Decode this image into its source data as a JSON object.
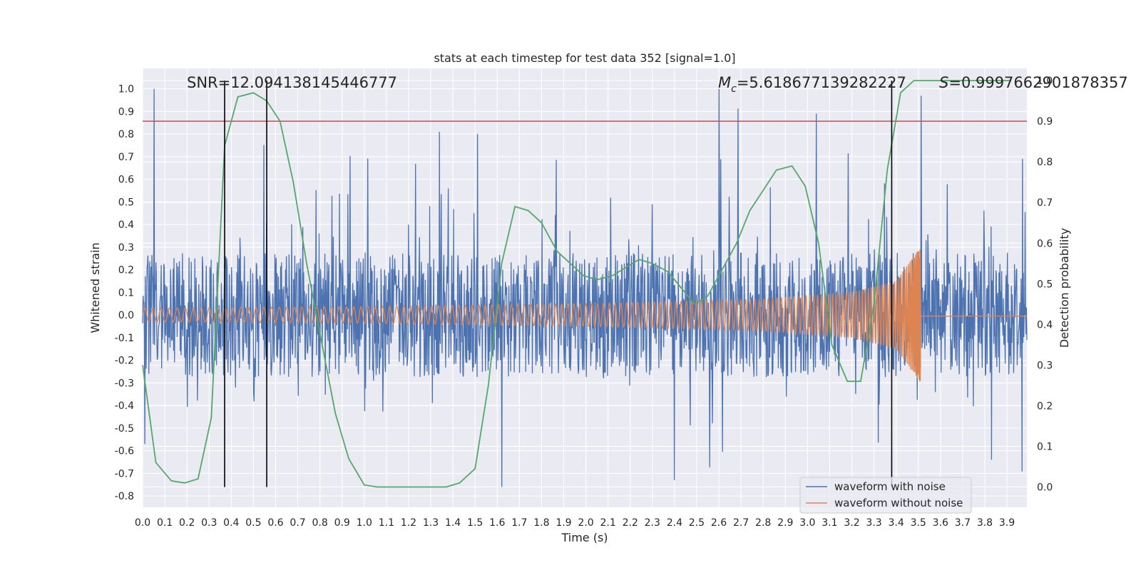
{
  "chart_data": {
    "type": "line",
    "title": "stats at each timestep for test data 352 [signal=1.0]",
    "xlabel": "Time (s)",
    "ylabel": "Whitened strain",
    "y2label": "Detection probability",
    "xlim": [
      0.0,
      3.99
    ],
    "ylim": [
      -0.85,
      1.09
    ],
    "y2lim": [
      -0.05,
      1.03
    ],
    "x_ticks": [
      0.0,
      0.1,
      0.2,
      0.3,
      0.4,
      0.5,
      0.6,
      0.7,
      0.8,
      0.9,
      1.0,
      1.1,
      1.2,
      1.3,
      1.4,
      1.5,
      1.6,
      1.7,
      1.8,
      1.9,
      2.0,
      2.1,
      2.2,
      2.3,
      2.4,
      2.5,
      2.6,
      2.7,
      2.8,
      2.9,
      3.0,
      3.1,
      3.2,
      3.3,
      3.4,
      3.5,
      3.6,
      3.7,
      3.8,
      3.9
    ],
    "y_ticks": [
      -0.8,
      -0.7,
      -0.6,
      -0.5,
      -0.4,
      -0.3,
      -0.2,
      -0.1,
      0.0,
      0.1,
      0.2,
      0.3,
      0.4,
      0.5,
      0.6,
      0.7,
      0.8,
      0.9,
      1.0
    ],
    "y2_ticks": [
      0.0,
      0.1,
      0.2,
      0.3,
      0.4,
      0.5,
      0.6,
      0.7,
      0.8,
      0.9,
      1.0
    ],
    "grid": true,
    "legend": [
      "waveform with noise",
      "waveform without noise"
    ],
    "legend_position": "lower-right",
    "annotations": {
      "snr": "SNR=12.094138145446777",
      "mc_symbol": "M",
      "mc_sub": "c",
      "mc_value": "=5.618677139282227",
      "s_symbol": "S",
      "s_value": "=0.9997662901878357"
    },
    "threshold": {
      "y2": 0.9,
      "color": "#c44e52"
    },
    "vertical_markers_x": [
      0.37,
      0.56,
      3.38
    ],
    "series": [
      {
        "name": "waveform with noise",
        "color": "#4c72b0",
        "axis": "left",
        "kind": "noise",
        "x_range": [
          0.0,
          3.99
        ],
        "y_min": -0.76,
        "y_max": 1.0,
        "peaks": [
          {
            "x": 2.6,
            "y": 1.0
          },
          {
            "x": 3.04,
            "y": 0.89
          },
          {
            "x": 1.34,
            "y": 0.81
          },
          {
            "x": 1.51,
            "y": 0.8
          },
          {
            "x": 1.62,
            "y": -0.76
          },
          {
            "x": 2.4,
            "y": -0.73
          },
          {
            "x": 0.01,
            "y": -0.57
          },
          {
            "x": 3.83,
            "y": -0.64
          },
          {
            "x": 3.97,
            "y": 0.69
          }
        ]
      },
      {
        "name": "waveform without noise",
        "color": "#dd8452",
        "axis": "left",
        "kind": "chirp",
        "x_range": [
          0.0,
          3.99
        ],
        "merger_x": 3.51,
        "envelope": [
          {
            "x": 0.0,
            "y": 0.03
          },
          {
            "x": 1.0,
            "y": 0.037
          },
          {
            "x": 2.0,
            "y": 0.05
          },
          {
            "x": 2.8,
            "y": 0.07
          },
          {
            "x": 3.2,
            "y": 0.1
          },
          {
            "x": 3.4,
            "y": 0.15
          },
          {
            "x": 3.48,
            "y": 0.26
          },
          {
            "x": 3.51,
            "y": 0.3
          }
        ],
        "ringdown_y": -0.005
      },
      {
        "name": "detection probability",
        "color": "#55a868",
        "axis": "right",
        "x": [
          0.0,
          0.06,
          0.13,
          0.19,
          0.25,
          0.31,
          0.37,
          0.43,
          0.5,
          0.56,
          0.62,
          0.68,
          0.74,
          0.81,
          0.87,
          0.93,
          1.0,
          1.06,
          1.12,
          1.18,
          1.25,
          1.31,
          1.37,
          1.43,
          1.5,
          1.56,
          1.62,
          1.68,
          1.74,
          1.8,
          1.87,
          1.93,
          1.99,
          2.05,
          2.12,
          2.18,
          2.24,
          2.3,
          2.37,
          2.43,
          2.49,
          2.55,
          2.61,
          2.68,
          2.74,
          2.8,
          2.86,
          2.93,
          2.99,
          3.05,
          3.11,
          3.18,
          3.24,
          3.3,
          3.36,
          3.42,
          3.48,
          3.55,
          3.61,
          3.67,
          3.73,
          3.79,
          3.86,
          3.92
        ],
        "y": [
          0.3,
          0.06,
          0.015,
          0.01,
          0.02,
          0.17,
          0.84,
          0.96,
          0.97,
          0.95,
          0.9,
          0.75,
          0.55,
          0.35,
          0.18,
          0.07,
          0.005,
          0.0,
          0.0,
          0.0,
          0.0,
          0.0,
          0.0,
          0.01,
          0.045,
          0.25,
          0.55,
          0.69,
          0.68,
          0.65,
          0.58,
          0.55,
          0.52,
          0.51,
          0.52,
          0.54,
          0.56,
          0.55,
          0.53,
          0.49,
          0.45,
          0.47,
          0.53,
          0.6,
          0.68,
          0.73,
          0.78,
          0.79,
          0.74,
          0.6,
          0.35,
          0.26,
          0.26,
          0.45,
          0.78,
          0.97,
          1.0,
          1.0,
          1.0,
          1.0,
          1.0,
          1.0,
          1.0,
          1.0
        ]
      }
    ]
  }
}
